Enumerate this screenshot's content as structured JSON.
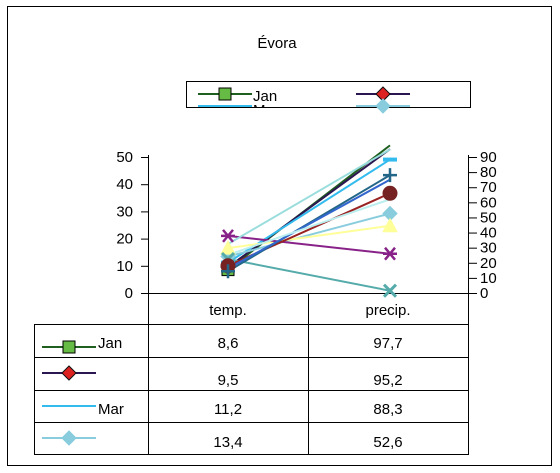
{
  "chart_data": {
    "type": "line",
    "title": "Évora",
    "categories": [
      "temp.",
      "precip."
    ],
    "y_left_range": [
      0,
      50
    ],
    "y_left_ticks": [
      "0",
      "10",
      "20",
      "30",
      "40",
      "50"
    ],
    "y_right_range": [
      0,
      90
    ],
    "y_right_ticks": [
      "0",
      "10",
      "20",
      "30",
      "40",
      "50",
      "60",
      "70",
      "80",
      "90"
    ],
    "legend_position": "top-center",
    "legend_labels": [
      "Jan",
      "Mar"
    ],
    "series": [
      {
        "name": "Jan",
        "values": [
          8.6,
          97.7
        ],
        "color": "#1f5f1f",
        "marker": "square",
        "marker_fill": "#66bb44"
      },
      {
        "values": [
          9.5,
          95.2
        ],
        "color": "#2a1650",
        "marker": "diamond",
        "marker_fill": "#dd2222"
      },
      {
        "name": "Mar",
        "values": [
          11.2,
          88.3
        ],
        "color": "#33bbee",
        "marker": "dash"
      },
      {
        "values": [
          13.4,
          52.6
        ],
        "color": "#88ccdd",
        "marker": "diamond",
        "marker_fill": "#88ccdd"
      },
      {
        "values": [
          16.5,
          44.5
        ],
        "color": "#ffff99",
        "marker": "triangle",
        "marker_fill": "#ffff99"
      },
      {
        "values": [
          21.0,
          26.0
        ],
        "color": "#882288",
        "marker": "asterisk"
      },
      {
        "values": [
          12.5,
          1.5
        ],
        "color": "#55aaaa",
        "marker": "x"
      },
      {
        "values": [
          10.0,
          66.0
        ],
        "color": "#992222",
        "marker": "circle",
        "marker_fill": "#772222"
      },
      {
        "values": [
          8.0,
          78.0
        ],
        "color": "#226688",
        "marker": "plus"
      },
      {
        "values": [
          9.0,
          75.0
        ],
        "color": "#3366cc",
        "marker": "none"
      },
      {
        "values": [
          14.0,
          62.0
        ],
        "color": "#bbeeee",
        "marker": "none"
      },
      {
        "values": [
          18.0,
          95.0
        ],
        "color": "#99dddd",
        "marker": "none"
      }
    ],
    "table": {
      "columns": [
        "temp.",
        "precip."
      ],
      "rows": [
        {
          "name": "Jan",
          "values": [
            "8,6",
            "97,7"
          ]
        },
        {
          "values": [
            "9,5",
            "95,2"
          ]
        },
        {
          "name": "Mar",
          "values": [
            "11,2",
            "88,3"
          ]
        },
        {
          "values": [
            "13,4",
            "52,6"
          ]
        }
      ]
    }
  }
}
